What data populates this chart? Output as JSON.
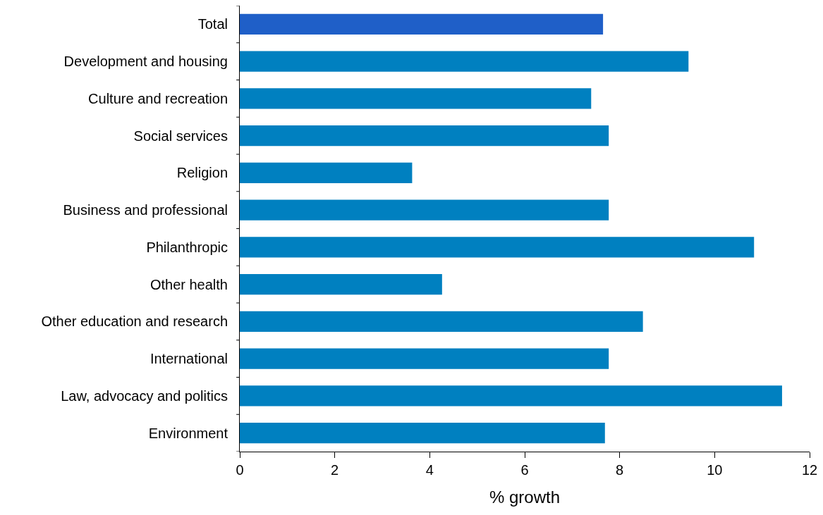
{
  "chart_data": {
    "type": "bar",
    "orientation": "horizontal",
    "xlabel": "% growth",
    "categories": [
      "Total",
      "Development and housing",
      "Culture and recreation",
      "Social services",
      "Religion",
      "Business and professional",
      "Philanthropic",
      "Other health",
      "Other education and research",
      "International",
      "Law, advocacy and politics",
      "Environment"
    ],
    "values": [
      7.65,
      9.45,
      7.4,
      7.77,
      3.63,
      7.77,
      10.83,
      4.26,
      8.49,
      7.77,
      11.42,
      7.69
    ],
    "colors": [
      "#1f5fc8",
      "#0080c0",
      "#0080c0",
      "#0080c0",
      "#0080c0",
      "#0080c0",
      "#0080c0",
      "#0080c0",
      "#0080c0",
      "#0080c0",
      "#0080c0",
      "#0080c0"
    ],
    "xlim": [
      0,
      12
    ],
    "xticks": [
      0,
      2,
      4,
      6,
      8,
      10,
      12
    ]
  }
}
